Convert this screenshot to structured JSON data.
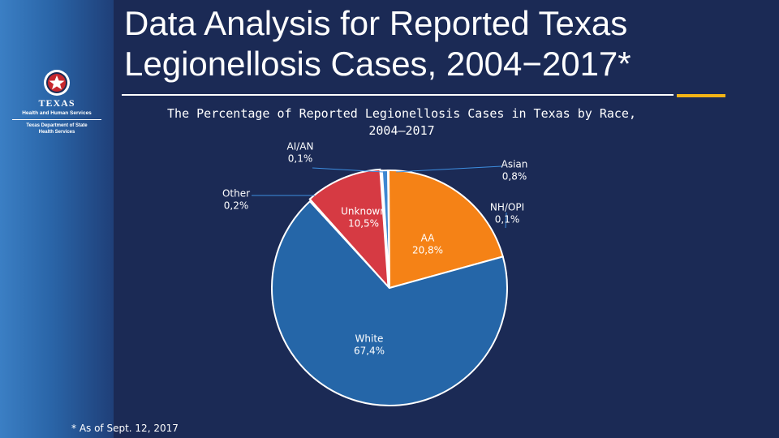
{
  "title": "Data Analysis for Reported Texas Legionellosis Cases, 2004−2017*",
  "logo": {
    "line1": "TEXAS",
    "line2": "Health and Human Services",
    "line3": "Texas Department of State",
    "line4": "Health Services"
  },
  "footnote": "* As of Sept. 12, 2017",
  "chart_data": {
    "type": "pie",
    "title": "The Percentage of Reported Legionellosis Cases in Texas by Race, 2004–2017",
    "slices": [
      {
        "label": "AI/AN",
        "value": 0.1,
        "value_text": "0,1%",
        "color": "#2e6db0"
      },
      {
        "label": "Asian",
        "value": 0.8,
        "value_text": "0,8%",
        "color": "#3d87d1"
      },
      {
        "label": "NH/OPI",
        "value": 0.1,
        "value_text": "0,1%",
        "color": "#1c3f78"
      },
      {
        "label": "AA",
        "value": 20.8,
        "value_text": "20,8%",
        "color": "#f58216"
      },
      {
        "label": "White",
        "value": 67.4,
        "value_text": "67,4%",
        "color": "#2566a8"
      },
      {
        "label": "Other",
        "value": 0.2,
        "value_text": "0,2%",
        "color": "#3a77bb"
      },
      {
        "label": "Unknown",
        "value": 10.5,
        "value_text": "10,5%",
        "color": "#d63a43"
      }
    ],
    "legend": "none"
  }
}
